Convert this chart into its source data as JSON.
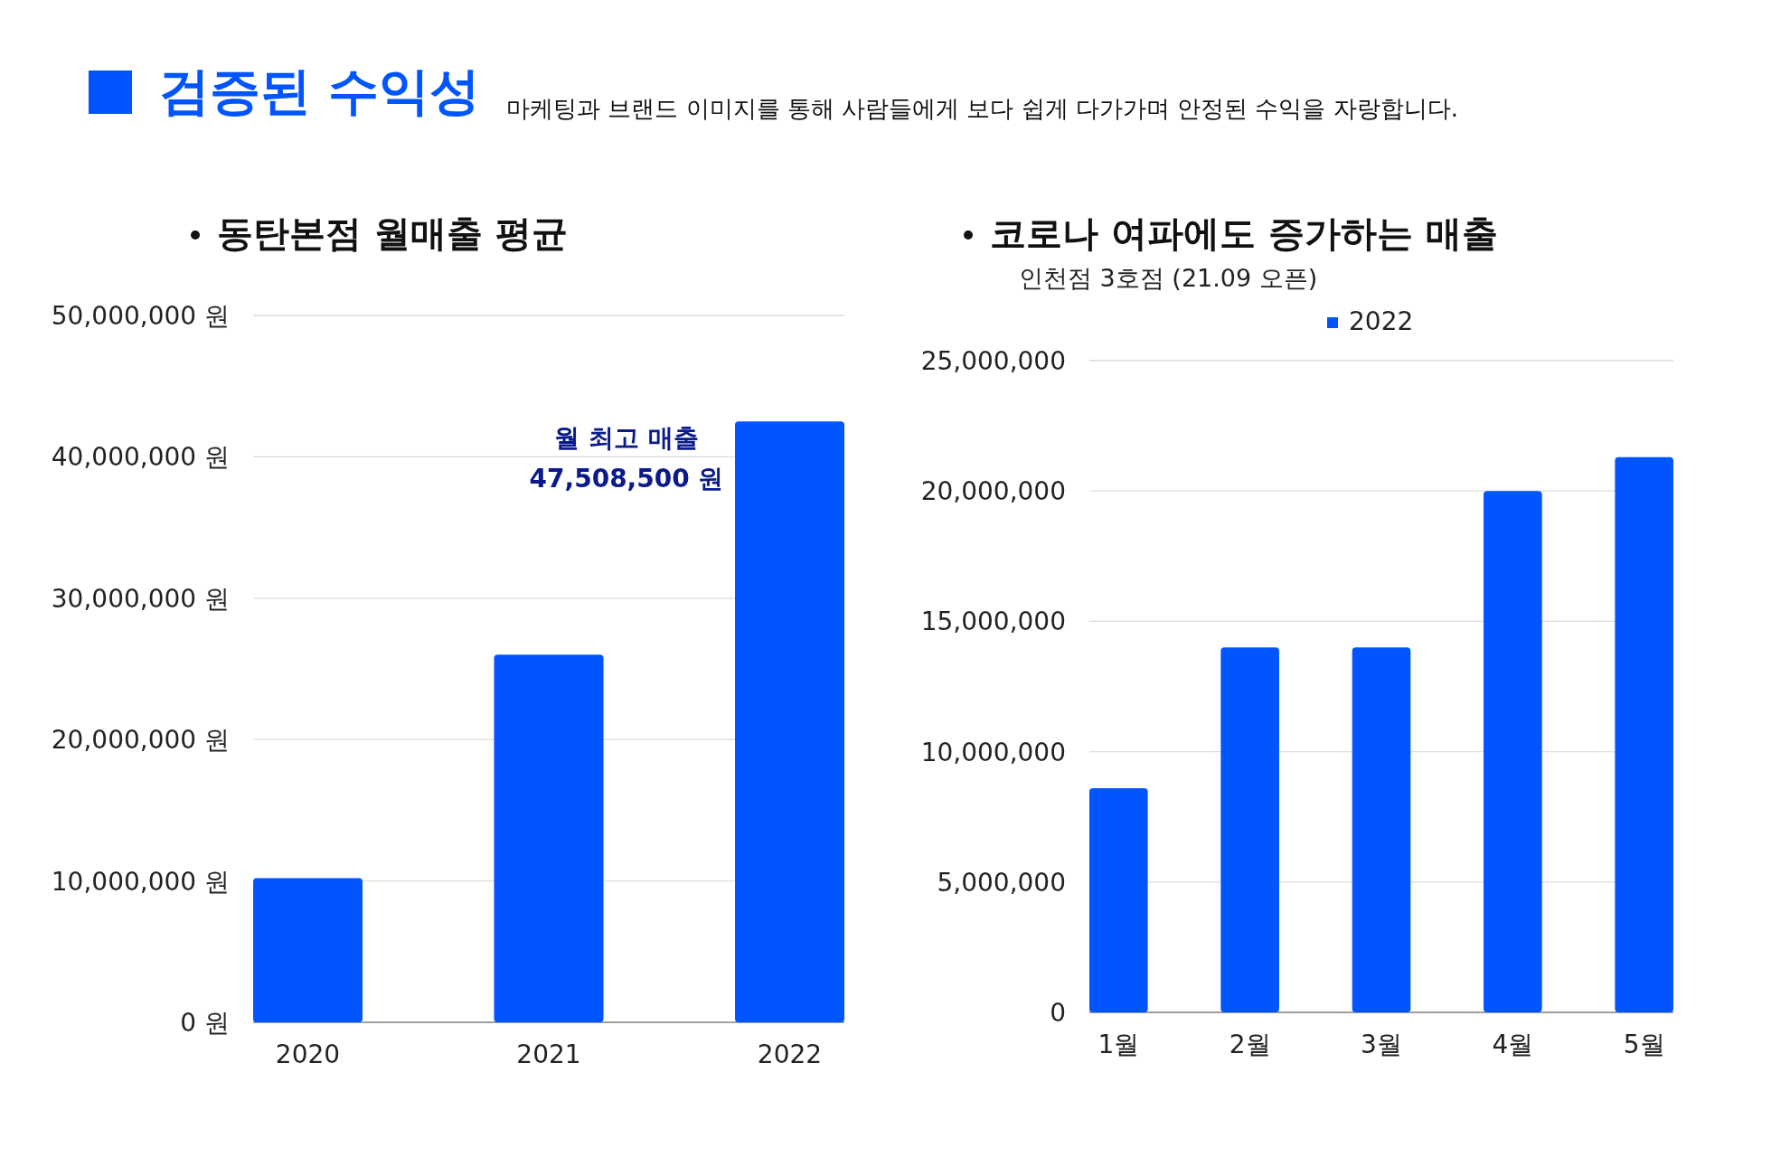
{
  "chart_data": [
    {
      "type": "other",
      "title": "검증된 수익성",
      "subtitle": "마케팅과 브랜드 이미지를 통해 사람들에게 보다 쉽게 다가가며 안정된 수익을 자랑합니다."
    },
    {
      "type": "bar",
      "title": "동탄본점 월매출 평균",
      "categories": [
        "2020",
        "2021",
        "2022"
      ],
      "values": [
        10200000,
        26000000,
        42500000
      ],
      "color": "#0055ff",
      "ylim": [
        0,
        50000000
      ],
      "yticks": [
        {
          "value": 0,
          "label": "0 원"
        },
        {
          "value": 10000000,
          "label": "10,000,000 원"
        },
        {
          "value": 20000000,
          "label": "20,000,000 원"
        },
        {
          "value": 30000000,
          "label": "30,000,000 원"
        },
        {
          "value": 40000000,
          "label": "40,000,000 원"
        },
        {
          "value": 50000000,
          "label": "50,000,000 원"
        }
      ],
      "grid": "y",
      "annotations": [
        "월 최고 매출",
        "47,508,500 원"
      ]
    },
    {
      "type": "bar",
      "title": "코로나 여파에도 증가하는 매출",
      "subtitle": "인천점 3호점 (21.09 오픈)",
      "categories": [
        "1월",
        "2월",
        "3월",
        "4월",
        "5월"
      ],
      "series": [
        {
          "name": "2022",
          "color": "#0055ff",
          "values": [
            8600000,
            14000000,
            14000000,
            20000000,
            21300000
          ]
        }
      ],
      "ylim": [
        0,
        25000000
      ],
      "yticks": [
        {
          "value": 0,
          "label": "0"
        },
        {
          "value": 5000000,
          "label": "5,000,000"
        },
        {
          "value": 10000000,
          "label": "10,000,000"
        },
        {
          "value": 15000000,
          "label": "15,000,000"
        },
        {
          "value": 20000000,
          "label": "20,000,000"
        },
        {
          "value": 25000000,
          "label": "25,000,000"
        }
      ],
      "grid": "y",
      "legend": "top"
    }
  ]
}
